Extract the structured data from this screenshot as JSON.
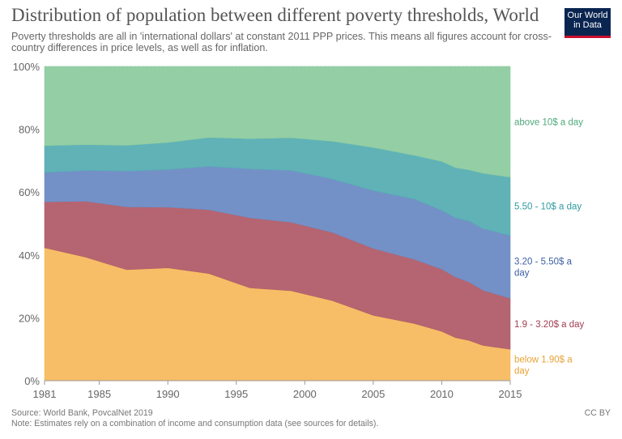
{
  "header": {
    "title": "Distribution of population between different poverty thresholds, World",
    "subtitle": "Poverty thresholds are all in 'international dollars' at constant 2011 PPP prices. This means all figures account for cross-country differences in price levels, as well as for inflation.",
    "logo_line1": "Our World",
    "logo_line2": "in Data"
  },
  "footer": {
    "source": "Source: World Bank, PovcalNet 2019",
    "note": "Note: Estimates rely on a combination of income and consumption data (see sources for details).",
    "license": "CC BY"
  },
  "chart_data": {
    "type": "area",
    "stacked": true,
    "x": [
      1981,
      1984,
      1987,
      1990,
      1993,
      1996,
      1999,
      2002,
      2005,
      2008,
      2010,
      2011,
      2012,
      2013,
      2015
    ],
    "xticks": [
      "1981",
      "1985",
      "1990",
      "1995",
      "2000",
      "2005",
      "2010",
      "2015"
    ],
    "xtick_values": [
      1981,
      1985,
      1990,
      1995,
      2000,
      2005,
      2010,
      2015
    ],
    "yticks": [
      "0%",
      "20%",
      "40%",
      "60%",
      "80%",
      "100%"
    ],
    "ytick_values": [
      0,
      20,
      40,
      60,
      80,
      100
    ],
    "ylim": [
      0,
      100
    ],
    "xlim": [
      1981,
      2015
    ],
    "grid": true,
    "legend_placement": "right (inline labels)",
    "series": [
      {
        "name": "below 1.90$ a day",
        "label_lines": [
          "below 1.90$ a",
          "day"
        ],
        "color": "#f7bb5f",
        "values": [
          42.3,
          39.3,
          35.3,
          35.9,
          34.1,
          29.5,
          28.6,
          25.5,
          20.8,
          18.2,
          15.7,
          13.7,
          12.8,
          11.2,
          10.0
        ]
      },
      {
        "name": "1.9 - 3.20$ a day",
        "label_lines": [
          "1.9 - 3.20$ a day"
        ],
        "color": "#b15d69",
        "values": [
          14.6,
          17.8,
          20.0,
          19.3,
          20.3,
          22.3,
          21.8,
          21.7,
          21.3,
          20.4,
          19.8,
          19.3,
          18.6,
          17.6,
          16.2
        ]
      },
      {
        "name": "3.20 - 5.50$ a day",
        "label_lines": [
          "3.20 - 5.50$ a",
          "day"
        ],
        "color": "#6d8bc4",
        "values": [
          9.4,
          9.8,
          11.4,
          12.0,
          13.8,
          15.6,
          16.5,
          17.0,
          18.4,
          19.2,
          18.7,
          18.8,
          19.4,
          19.6,
          20.0
        ]
      },
      {
        "name": "5.50 - 10$ a day",
        "label_lines": [
          "5.50 - 10$ a day"
        ],
        "color": "#57aeb3",
        "values": [
          8.5,
          8.2,
          8.2,
          8.6,
          9.2,
          9.6,
          10.4,
          12.0,
          13.7,
          13.9,
          15.6,
          16.0,
          16.3,
          17.6,
          18.6
        ]
      },
      {
        "name": "above 10$ a day",
        "label_lines": [
          "above 10$ a day"
        ],
        "color": "#8ecba0",
        "values": [
          25.2,
          24.9,
          25.1,
          24.2,
          22.6,
          23.0,
          22.7,
          23.8,
          25.8,
          28.3,
          30.2,
          32.2,
          32.9,
          34.0,
          35.2
        ]
      }
    ]
  }
}
